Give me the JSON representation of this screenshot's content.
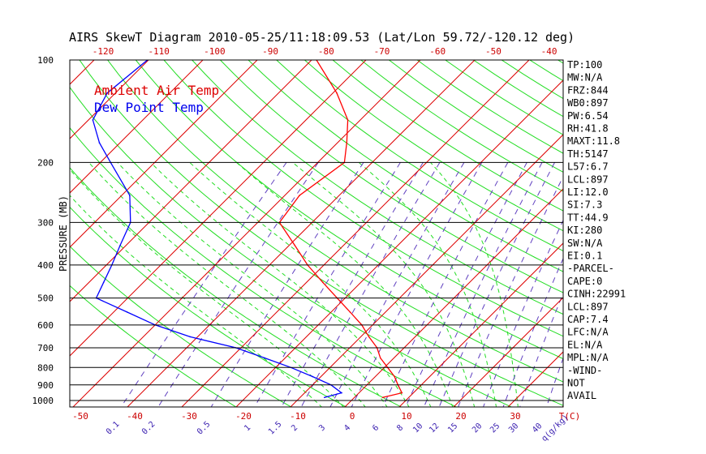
{
  "title": "AIRS SkewT Diagram 2010-05-25/11:18:09.53 (Lat/Lon 59.72/-120.12 deg)",
  "legend": {
    "ambient": "Ambient Air Temp",
    "dewpoint": "Dew Point Temp",
    "ambient_color": "#ff0000",
    "dewpoint_color": "#0000ff"
  },
  "indices": [
    "TP:100",
    "MW:N/A",
    "FRZ:844",
    "WB0:897",
    "PW:6.54",
    "RH:41.8",
    "MAXT:11.8",
    "TH:5147",
    "L57:6.7",
    "LCL:897",
    "LI:12.0",
    "SI:7.3",
    "TT:44.9",
    "KI:280",
    "SW:N/A",
    "EI:0.1",
    "-PARCEL-",
    "CAPE:0",
    "CINH:22991",
    "LCL:897",
    "CAP:7.4",
    "LFC:N/A",
    "EL:N/A",
    "MPL:N/A",
    "-WIND-",
    "NOT",
    "AVAIL"
  ],
  "chart_data": {
    "type": "line",
    "title": "AIRS SkewT Diagram 2010-05-25/11:18:09.53 (Lat/Lon 59.72/-120.12 deg)",
    "ylabel": "PRESSURE (MB)",
    "xlabel": "T(C)",
    "y_scale": "log",
    "ylim": [
      1050,
      100
    ],
    "pressure_ticks": [
      "100",
      "200",
      "300",
      "400",
      "500",
      "600",
      "700",
      "800",
      "900",
      "1000"
    ],
    "top_temp_ticks": [
      "-120",
      "-110",
      "-100",
      "-90",
      "-80",
      "-70",
      "-60",
      "-50",
      "-40"
    ],
    "bottom_temp_ticks": [
      "-50",
      "-40",
      "-30",
      "-20",
      "-10",
      "0",
      "10",
      "20",
      "30",
      "T(C)"
    ],
    "mixing_ratio_ticks": [
      "0.1",
      "0.2",
      "0.5",
      "1",
      "1.5",
      "2",
      "3",
      "4",
      "6",
      "8",
      "10",
      "12",
      "15",
      "20",
      "25",
      "30",
      "40",
      "q(g/kg)"
    ],
    "series": [
      {
        "name": "Ambient Air Temp",
        "color": "#ff0000",
        "pressure": [
          980,
          950,
          900,
          850,
          800,
          750,
          700,
          650,
          600,
          550,
          500,
          450,
          400,
          350,
          300,
          250,
          200,
          175,
          150,
          125,
          100
        ],
        "temperature": [
          5.2,
          7.9,
          5.7,
          3.5,
          0.6,
          -2.5,
          -5.0,
          -8.5,
          -12.0,
          -16.5,
          -21.5,
          -27.0,
          -33.0,
          -39.0,
          -46.0,
          -47.3,
          -45.1,
          -48.3,
          -52.3,
          -59.3,
          -69.1
        ]
      },
      {
        "name": "Dew Point Temp",
        "color": "#0000ff",
        "pressure": [
          980,
          950,
          900,
          850,
          800,
          750,
          700,
          650,
          600,
          550,
          500,
          450,
          400,
          350,
          300,
          250,
          200,
          175,
          150,
          125,
          100
        ],
        "temperature": [
          -5.5,
          -3.2,
          -6.6,
          -11.6,
          -17.2,
          -23.8,
          -31.0,
          -41.4,
          -50.0,
          -57.5,
          -65.8,
          -67.3,
          -69.0,
          -71.1,
          -73.4,
          -78.5,
          -88.1,
          -93.8,
          -99.2,
          -101.5,
          -100.2
        ]
      }
    ]
  }
}
